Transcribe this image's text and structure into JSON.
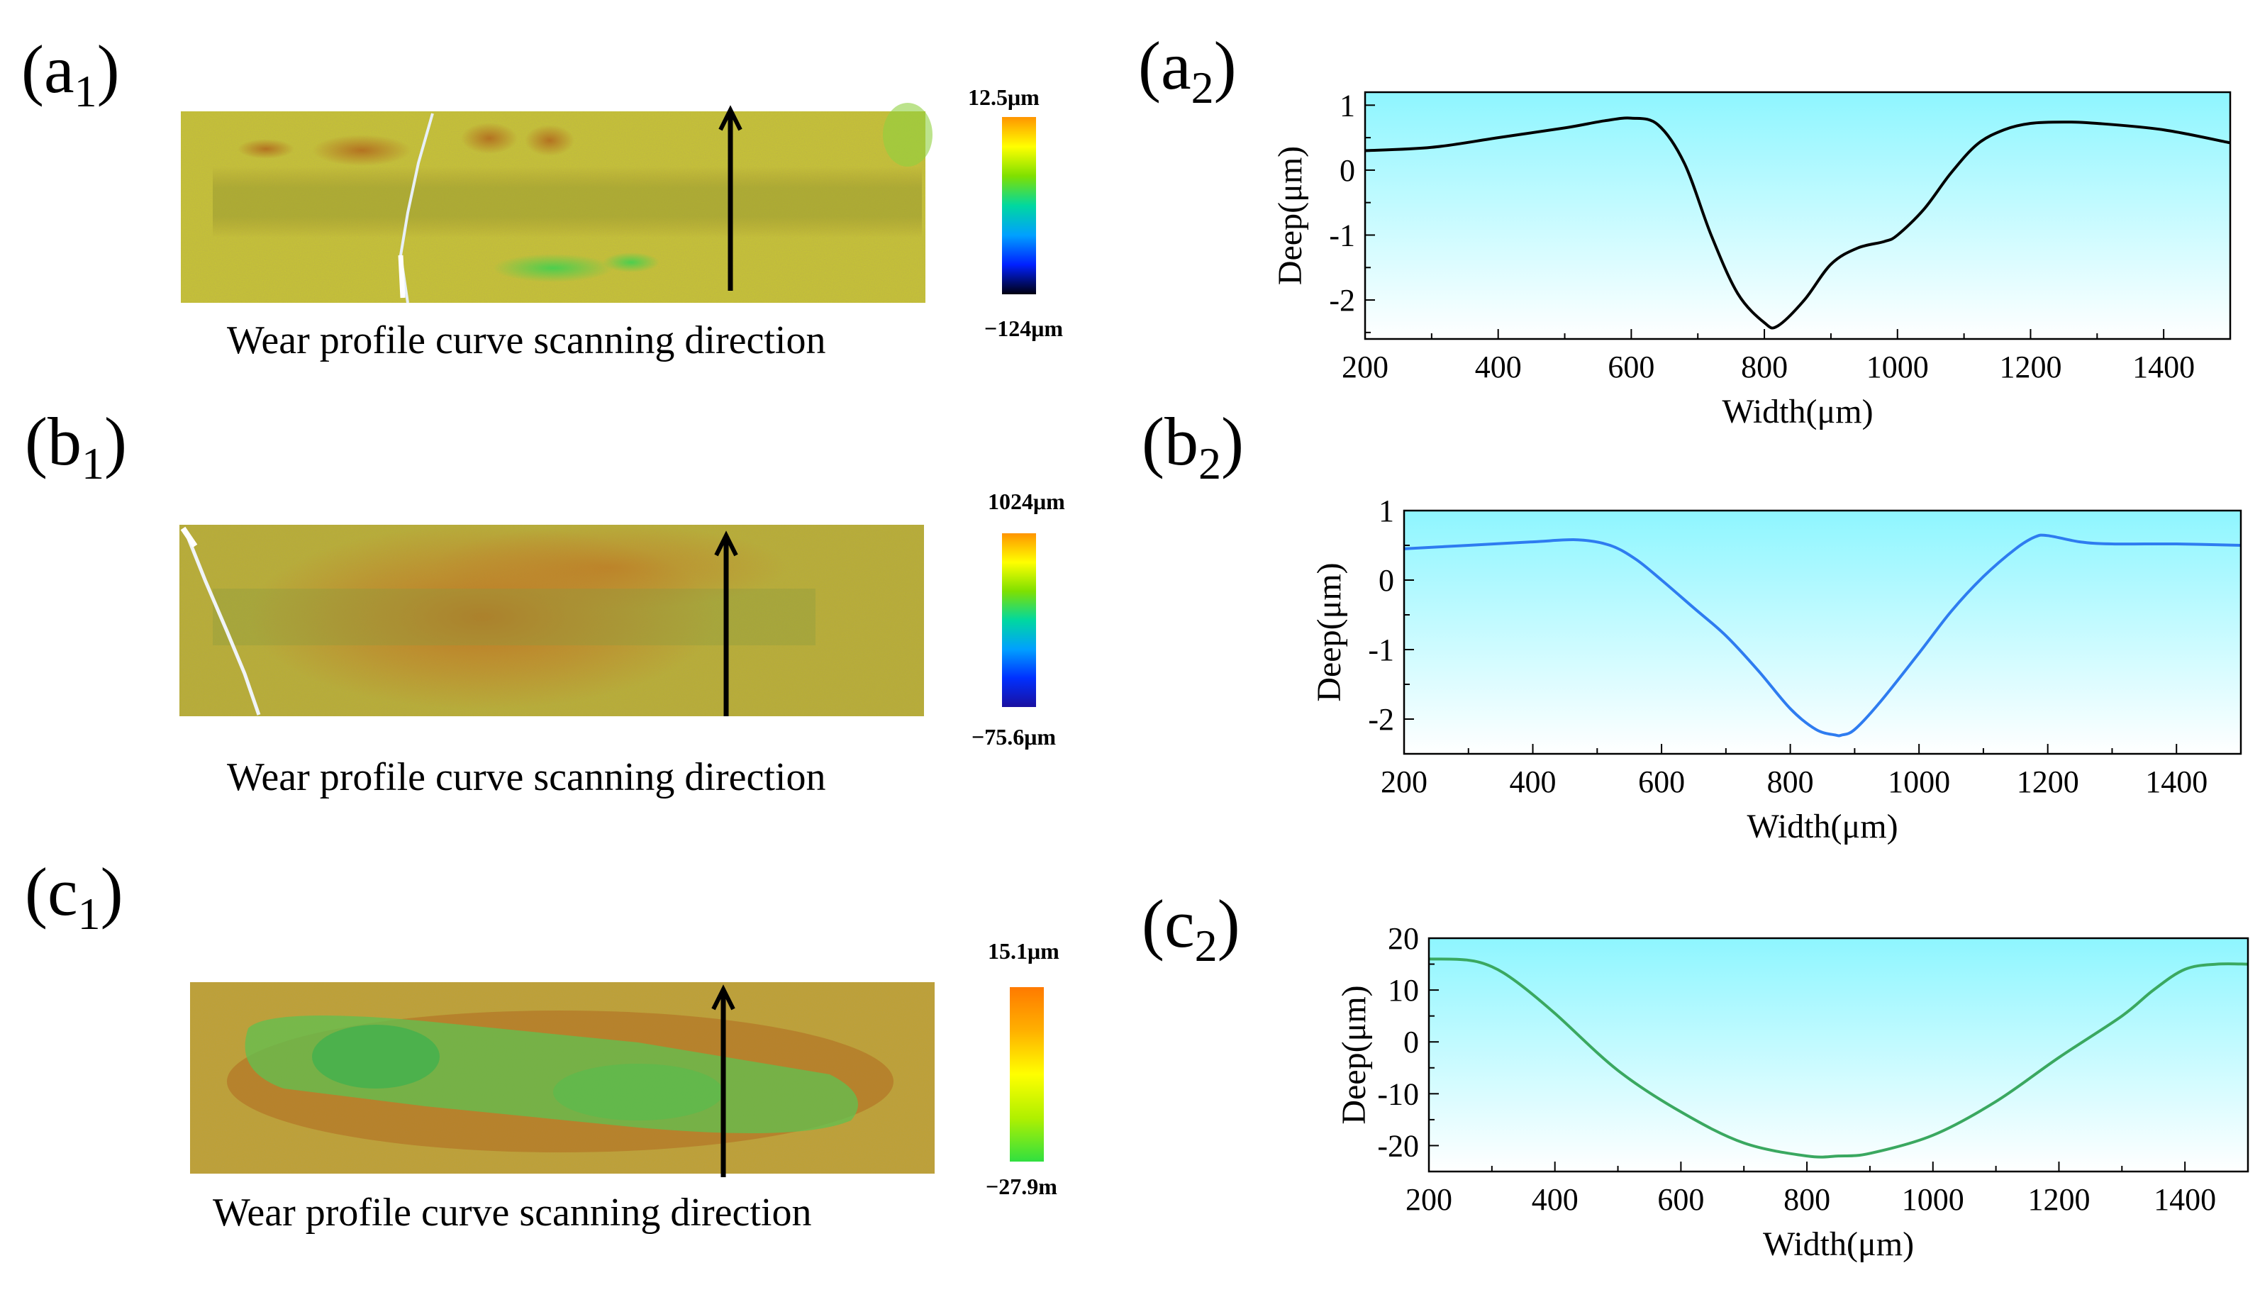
{
  "panels": [
    {
      "map": {
        "label_main": "(a",
        "label_sub": "1",
        "label_close": ")",
        "caption": "Wear profile curve scanning direction",
        "colorbar_max": "12.5μm",
        "colorbar_min": "−124μm",
        "colorbar_colors": [
          "#ff9500",
          "#ffff00",
          "#7fe000",
          "#00d8a0",
          "#00a0ff",
          "#0020ff",
          "#000010"
        ]
      },
      "chart_label": {
        "main": "(a",
        "sub": "2",
        "close": ")"
      }
    },
    {
      "map": {
        "label_main": "(b",
        "label_sub": "1",
        "label_close": ")",
        "caption": "Wear profile curve scanning direction",
        "colorbar_max": "1024μm",
        "colorbar_min": "−75.6μm",
        "colorbar_colors": [
          "#ff9500",
          "#ffff00",
          "#7fe000",
          "#00d8a0",
          "#00a0ff",
          "#0030ff",
          "#1a10a0"
        ]
      },
      "chart_label": {
        "main": "(b",
        "sub": "2",
        "close": ")"
      }
    },
    {
      "map": {
        "label_main": "(c",
        "label_sub": "1",
        "label_close": ")",
        "caption": "Wear profile curve scanning direction",
        "colorbar_max": "15.1μm",
        "colorbar_min": "−27.9m",
        "colorbar_colors": [
          "#ff7a00",
          "#ffb000",
          "#ffff00",
          "#b0f000",
          "#30e040"
        ]
      },
      "chart_label": {
        "main": "(c",
        "sub": "2",
        "close": ")"
      }
    }
  ],
  "chart_data": [
    {
      "type": "line",
      "title": "",
      "xlabel": "Width(μm)",
      "ylabel": "Deep(μm)",
      "xlim": [
        200,
        1500
      ],
      "ylim": [
        -2.6,
        1.2
      ],
      "xticks": [
        200,
        400,
        600,
        800,
        1000,
        1200,
        1400
      ],
      "yticks": [
        -2,
        -1,
        0,
        1
      ],
      "line_color": "#000000",
      "background_gradient": [
        "#8ef6ff",
        "#ffffff"
      ],
      "series": [
        {
          "name": "a2",
          "x": [
            200,
            300,
            400,
            500,
            560,
            600,
            640,
            680,
            720,
            760,
            800,
            820,
            860,
            900,
            940,
            980,
            1000,
            1040,
            1080,
            1120,
            1160,
            1200,
            1250,
            1300,
            1400,
            1500
          ],
          "y": [
            0.3,
            0.35,
            0.5,
            0.65,
            0.76,
            0.8,
            0.7,
            0.1,
            -1.0,
            -1.9,
            -2.35,
            -2.4,
            -2.0,
            -1.45,
            -1.2,
            -1.1,
            -1.0,
            -0.6,
            -0.05,
            0.4,
            0.62,
            0.72,
            0.74,
            0.72,
            0.62,
            0.42
          ]
        }
      ]
    },
    {
      "type": "line",
      "title": "",
      "xlabel": "Width(μm)",
      "ylabel": "Deep(μm)",
      "xlim": [
        200,
        1500
      ],
      "ylim": [
        -2.5,
        1.0
      ],
      "xticks": [
        200,
        400,
        600,
        800,
        1000,
        1200,
        1400
      ],
      "yticks": [
        -2,
        -1,
        0,
        1
      ],
      "line_color": "#2e7cf0",
      "background_gradient": [
        "#8ef6ff",
        "#ffffff"
      ],
      "series": [
        {
          "name": "b2",
          "x": [
            200,
            300,
            400,
            470,
            520,
            560,
            600,
            650,
            700,
            750,
            800,
            840,
            870,
            880,
            900,
            940,
            1000,
            1050,
            1100,
            1150,
            1180,
            1200,
            1250,
            1300,
            1400,
            1500
          ],
          "y": [
            0.45,
            0.5,
            0.55,
            0.58,
            0.5,
            0.3,
            0.0,
            -0.4,
            -0.8,
            -1.3,
            -1.85,
            -2.15,
            -2.23,
            -2.23,
            -2.15,
            -1.75,
            -1.05,
            -0.45,
            0.05,
            0.45,
            0.62,
            0.64,
            0.55,
            0.52,
            0.52,
            0.5
          ]
        }
      ]
    },
    {
      "type": "line",
      "title": "",
      "xlabel": "Width(μm)",
      "ylabel": "Deep(μm)",
      "xlim": [
        200,
        1500
      ],
      "ylim": [
        -25,
        20
      ],
      "xticks": [
        200,
        400,
        600,
        800,
        1000,
        1200,
        1400
      ],
      "yticks": [
        -20,
        -10,
        0,
        10,
        20
      ],
      "line_color": "#3aa860",
      "background_gradient": [
        "#8ef6ff",
        "#ffffff"
      ],
      "series": [
        {
          "name": "c2",
          "x": [
            200,
            260,
            300,
            340,
            400,
            500,
            600,
            700,
            800,
            850,
            900,
            1000,
            1100,
            1200,
            1300,
            1350,
            1400,
            1450,
            1500
          ],
          "y": [
            16,
            15.8,
            14.5,
            11.5,
            5.5,
            -5.5,
            -13.5,
            -19.5,
            -22,
            -22,
            -21.5,
            -18,
            -11.5,
            -3,
            5,
            10,
            14,
            15,
            15
          ]
        }
      ]
    }
  ]
}
